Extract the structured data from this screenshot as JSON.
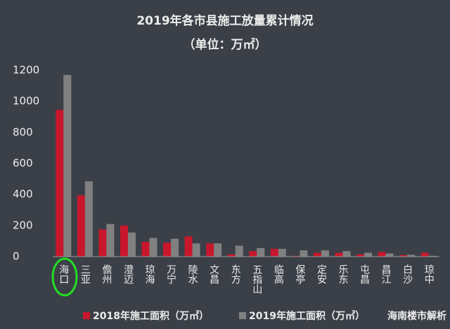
{
  "chart_data": {
    "type": "bar",
    "title": "2019年各市县施工放量累计情况",
    "subtitle": "（单位：万㎡）",
    "categories": [
      "海口",
      "三亚",
      "儋州",
      "澄迈",
      "琼海",
      "万宁",
      "陵水",
      "文昌",
      "东方",
      "五指山",
      "临高",
      "保亭",
      "定安",
      "乐东",
      "屯昌",
      "昌江",
      "白沙",
      "琼中"
    ],
    "series": [
      {
        "name": "2018年施工面积（万㎡）",
        "color": "#c8172c",
        "values": [
          945,
          395,
          175,
          200,
          95,
          90,
          130,
          85,
          15,
          35,
          50,
          5,
          25,
          25,
          15,
          30,
          10,
          25
        ]
      },
      {
        "name": "2019年施工面积（万㎡）",
        "color": "#808080",
        "values": [
          1170,
          485,
          210,
          155,
          120,
          115,
          85,
          85,
          70,
          55,
          50,
          40,
          40,
          35,
          25,
          20,
          12,
          5
        ]
      }
    ],
    "ylim": [
      0,
      1200
    ],
    "yticks": [
      0,
      200,
      400,
      600,
      800,
      1000,
      1200
    ],
    "grid": false,
    "legend": "bottom",
    "watermark": "海南楼市解析"
  }
}
